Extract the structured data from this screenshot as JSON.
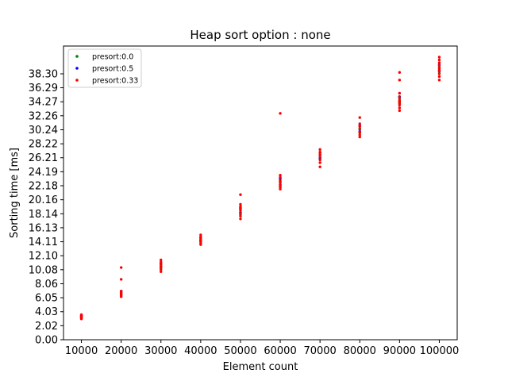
{
  "chart_data": {
    "type": "scatter",
    "title": "Heap sort option : none",
    "xlabel": "Element count",
    "ylabel": "Sorting time [ms]",
    "xlim": [
      5500,
      104500
    ],
    "ylim": [
      0,
      42.3
    ],
    "xticks": [
      10000,
      20000,
      30000,
      40000,
      50000,
      60000,
      70000,
      80000,
      90000,
      100000
    ],
    "xtick_labels": [
      "10000",
      "20000",
      "30000",
      "40000",
      "50000",
      "60000",
      "70000",
      "80000",
      "90000",
      "100000"
    ],
    "yticks": [
      0.0,
      2.02,
      4.03,
      6.05,
      8.06,
      10.08,
      12.1,
      14.11,
      16.13,
      18.14,
      20.16,
      22.18,
      24.19,
      26.21,
      28.22,
      30.24,
      32.26,
      34.27,
      36.29,
      38.3
    ],
    "ytick_labels": [
      "0.00",
      "2.02",
      "4.03",
      "6.05",
      "8.06",
      "10.08",
      "12.10",
      "14.11",
      "16.13",
      "18.14",
      "20.16",
      "22.18",
      "24.19",
      "26.21",
      "28.22",
      "30.24",
      "32.26",
      "34.27",
      "36.29",
      "38.30"
    ],
    "grid": false,
    "legend_position": "upper-left",
    "series": [
      {
        "name": "presort:0.0",
        "color": "#008000",
        "points": [
          [
            10000,
            3.2
          ],
          [
            10000,
            3.4
          ],
          [
            20000,
            6.5
          ],
          [
            20000,
            6.9
          ],
          [
            30000,
            10.3
          ],
          [
            30000,
            10.8
          ],
          [
            40000,
            14.2
          ],
          [
            40000,
            14.6
          ],
          [
            50000,
            18.0
          ],
          [
            50000,
            18.8
          ],
          [
            60000,
            22.0
          ],
          [
            60000,
            22.8
          ],
          [
            70000,
            26.0
          ],
          [
            70000,
            26.6
          ],
          [
            80000,
            29.8
          ],
          [
            80000,
            30.4
          ],
          [
            90000,
            34.0
          ],
          [
            90000,
            34.8
          ],
          [
            100000,
            38.6
          ],
          [
            100000,
            39.2
          ]
        ]
      },
      {
        "name": "presort:0.5",
        "color": "#0000ff",
        "points": [
          [
            10000,
            3.3
          ],
          [
            10000,
            3.5
          ],
          [
            20000,
            6.6
          ],
          [
            20000,
            7.0
          ],
          [
            30000,
            10.5
          ],
          [
            30000,
            11.0
          ],
          [
            40000,
            14.3
          ],
          [
            40000,
            14.8
          ],
          [
            50000,
            18.3
          ],
          [
            50000,
            19.0
          ],
          [
            60000,
            22.3
          ],
          [
            60000,
            23.2
          ],
          [
            70000,
            26.2
          ],
          [
            70000,
            27.0
          ],
          [
            80000,
            30.0
          ],
          [
            80000,
            30.8
          ],
          [
            90000,
            34.3
          ],
          [
            90000,
            35.0
          ],
          [
            100000,
            38.8
          ],
          [
            100000,
            39.6
          ]
        ]
      },
      {
        "name": "presort:0.33",
        "color": "#ff0000",
        "points": [
          [
            10000,
            3.0
          ],
          [
            10000,
            3.1
          ],
          [
            10000,
            3.2
          ],
          [
            10000,
            3.3
          ],
          [
            10000,
            3.4
          ],
          [
            10000,
            3.5
          ],
          [
            10000,
            3.6
          ],
          [
            20000,
            6.2
          ],
          [
            20000,
            6.4
          ],
          [
            20000,
            6.6
          ],
          [
            20000,
            6.8
          ],
          [
            20000,
            7.0
          ],
          [
            20000,
            8.7
          ],
          [
            20000,
            10.4
          ],
          [
            30000,
            9.8
          ],
          [
            30000,
            10.1
          ],
          [
            30000,
            10.4
          ],
          [
            30000,
            10.6
          ],
          [
            30000,
            10.9
          ],
          [
            30000,
            11.2
          ],
          [
            30000,
            11.5
          ],
          [
            40000,
            13.7
          ],
          [
            40000,
            13.9
          ],
          [
            40000,
            14.1
          ],
          [
            40000,
            14.3
          ],
          [
            40000,
            14.5
          ],
          [
            40000,
            14.8
          ],
          [
            40000,
            15.1
          ],
          [
            50000,
            17.4
          ],
          [
            50000,
            17.8
          ],
          [
            50000,
            18.2
          ],
          [
            50000,
            18.6
          ],
          [
            50000,
            18.9
          ],
          [
            50000,
            19.2
          ],
          [
            50000,
            19.5
          ],
          [
            50000,
            20.9
          ],
          [
            60000,
            21.7
          ],
          [
            60000,
            22.0
          ],
          [
            60000,
            22.3
          ],
          [
            60000,
            22.6
          ],
          [
            60000,
            22.9
          ],
          [
            60000,
            23.4
          ],
          [
            60000,
            23.7
          ],
          [
            60000,
            32.6
          ],
          [
            70000,
            24.9
          ],
          [
            70000,
            25.5
          ],
          [
            70000,
            25.9
          ],
          [
            70000,
            26.3
          ],
          [
            70000,
            26.7
          ],
          [
            70000,
            27.0
          ],
          [
            70000,
            27.4
          ],
          [
            80000,
            29.2
          ],
          [
            80000,
            29.5
          ],
          [
            80000,
            29.9
          ],
          [
            80000,
            30.3
          ],
          [
            80000,
            30.7
          ],
          [
            80000,
            31.1
          ],
          [
            80000,
            32.0
          ],
          [
            90000,
            33.0
          ],
          [
            90000,
            33.4
          ],
          [
            90000,
            33.8
          ],
          [
            90000,
            34.2
          ],
          [
            90000,
            34.5
          ],
          [
            90000,
            34.9
          ],
          [
            90000,
            35.5
          ],
          [
            90000,
            37.4
          ],
          [
            90000,
            38.5
          ],
          [
            100000,
            37.4
          ],
          [
            100000,
            37.9
          ],
          [
            100000,
            38.3
          ],
          [
            100000,
            38.7
          ],
          [
            100000,
            39.1
          ],
          [
            100000,
            39.5
          ],
          [
            100000,
            39.9
          ],
          [
            100000,
            40.3
          ],
          [
            100000,
            40.7
          ]
        ]
      }
    ]
  }
}
